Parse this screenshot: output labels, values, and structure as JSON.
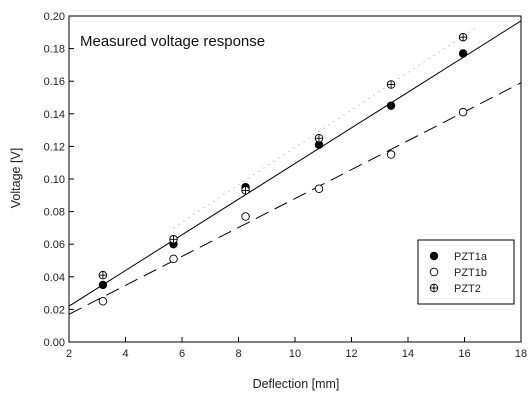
{
  "chart_data": {
    "type": "scatter",
    "title": "Measured voltage response",
    "xlabel": "Deflection [mm]",
    "ylabel": "Voltage [V]",
    "xlim": [
      2,
      18
    ],
    "ylim": [
      0,
      0.2
    ],
    "xticks": [
      "2",
      "4",
      "6",
      "8",
      "10",
      "12",
      "14",
      "16",
      "18"
    ],
    "yticks": [
      "0.00",
      "0.02",
      "0.04",
      "0.06",
      "0.08",
      "0.10",
      "0.12",
      "0.14",
      "0.16",
      "0.18",
      "0.20"
    ],
    "grid": false,
    "legend_position": "bottom-right",
    "series": [
      {
        "name": "PZT1a",
        "marker": "filled-circle",
        "points": [
          [
            3.2,
            0.035
          ],
          [
            5.7,
            0.06
          ],
          [
            8.25,
            0.095
          ],
          [
            10.85,
            0.121
          ],
          [
            13.4,
            0.145
          ],
          [
            15.95,
            0.177
          ]
        ]
      },
      {
        "name": "PZT1b",
        "marker": "open-circle",
        "points": [
          [
            3.2,
            0.025
          ],
          [
            5.7,
            0.051
          ],
          [
            8.25,
            0.077
          ],
          [
            10.85,
            0.094
          ],
          [
            13.4,
            0.115
          ],
          [
            15.95,
            0.141
          ]
        ]
      },
      {
        "name": "PZT2",
        "marker": "crossed-circle",
        "points": [
          [
            3.2,
            0.041
          ],
          [
            5.7,
            0.063
          ],
          [
            8.25,
            0.093
          ],
          [
            10.85,
            0.125
          ],
          [
            13.4,
            0.158
          ],
          [
            15.95,
            0.187
          ]
        ]
      }
    ],
    "fit_lines": [
      {
        "style": "solid",
        "x": [
          2,
          18
        ],
        "y": [
          0.022,
          0.197
        ]
      },
      {
        "style": "dashed",
        "x": [
          2,
          18
        ],
        "y": [
          0.017,
          0.159
        ]
      },
      {
        "style": "dotted",
        "x": [
          5.7,
          16.5
        ],
        "y": [
          0.07,
          0.194
        ]
      }
    ]
  }
}
